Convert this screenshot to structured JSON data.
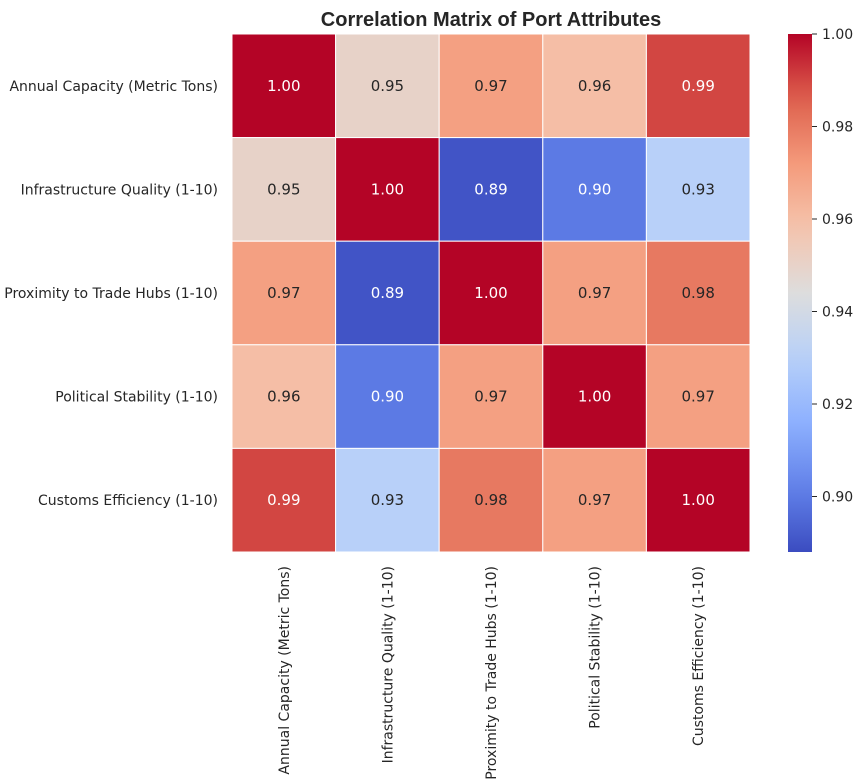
{
  "chart_data": {
    "type": "heatmap",
    "title": "Correlation Matrix of Port Attributes",
    "rows": [
      "Annual Capacity (Metric Tons)",
      "Infrastructure Quality (1-10)",
      "Proximity to Trade Hubs (1-10)",
      "Political Stability (1-10)",
      "Customs Efficiency (1-10)"
    ],
    "columns": [
      "Annual Capacity (Metric Tons)",
      "Infrastructure Quality (1-10)",
      "Proximity to Trade Hubs (1-10)",
      "Political Stability (1-10)",
      "Customs Efficiency (1-10)"
    ],
    "values": [
      [
        1.0,
        0.95,
        0.97,
        0.96,
        0.99
      ],
      [
        0.95,
        1.0,
        0.89,
        0.9,
        0.93
      ],
      [
        0.97,
        0.89,
        1.0,
        0.97,
        0.98
      ],
      [
        0.96,
        0.9,
        0.97,
        1.0,
        0.97
      ],
      [
        0.99,
        0.93,
        0.98,
        0.97,
        1.0
      ]
    ],
    "annotation_format": "0.00",
    "colormap": "coolwarm",
    "vmin": 0.888,
    "vmax": 1.0,
    "colorbar_ticks": [
      0.9,
      0.92,
      0.94,
      0.96,
      0.98,
      1.0
    ],
    "colorbar_tick_labels": [
      "0.90",
      "0.92",
      "0.94",
      "0.96",
      "0.98",
      "1.00"
    ]
  }
}
